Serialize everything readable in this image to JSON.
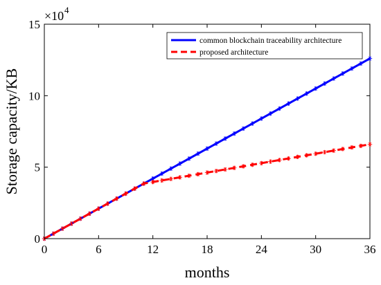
{
  "chart_data": {
    "type": "line",
    "title": "",
    "xlabel": "months",
    "ylabel": "Storage capacity/KB",
    "y_multiplier": {
      "base": "×10",
      "exponent": "4"
    },
    "xlim": [
      0,
      36
    ],
    "ylim": [
      0,
      150000
    ],
    "x_ticks": [
      0,
      6,
      12,
      18,
      24,
      30,
      36
    ],
    "y_ticks": [
      0,
      50000,
      100000,
      150000
    ],
    "y_tick_labels": [
      "0",
      "5",
      "10",
      "15"
    ],
    "grid": false,
    "legend_position": "top-right",
    "series": [
      {
        "name": "common blockchain traceability architecture",
        "color": "#0000ff",
        "line_style": "solid",
        "marker": "asterisk",
        "x": [
          0,
          36
        ],
        "values": [
          0,
          126000
        ]
      },
      {
        "name": "proposed architecture",
        "color": "#ff0000",
        "line_style": "dashed",
        "marker": "asterisk",
        "x": [
          0,
          11,
          36
        ],
        "values": [
          0,
          38500,
          66000
        ]
      }
    ]
  }
}
